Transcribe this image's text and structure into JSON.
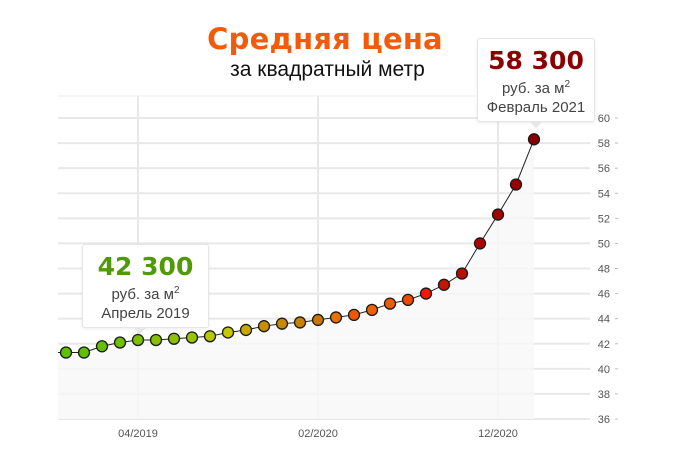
{
  "chart_data": {
    "type": "line",
    "title": "Средняя цена",
    "subtitle": "за квадратный метр",
    "xlabel": "",
    "ylabel": "",
    "ylim": [
      36,
      60
    ],
    "yticks": [
      36,
      38,
      40,
      42,
      44,
      46,
      48,
      50,
      52,
      54,
      56,
      58,
      60
    ],
    "xtick_labels": [
      {
        "index": 4,
        "label": "04/2019"
      },
      {
        "index": 14,
        "label": "02/2020"
      },
      {
        "index": 24,
        "label": "12/2020"
      }
    ],
    "x": [
      "12/2018",
      "01/2019",
      "02/2019",
      "03/2019",
      "04/2019",
      "05/2019",
      "06/2019",
      "07/2019",
      "08/2019",
      "09/2019",
      "10/2019",
      "11/2019",
      "12/2019",
      "01/2020",
      "02/2020",
      "03/2020",
      "04/2020",
      "05/2020",
      "06/2020",
      "07/2020",
      "08/2020",
      "09/2020",
      "10/2020",
      "11/2020",
      "12/2020",
      "01/2021",
      "02/2021"
    ],
    "values": [
      41.3,
      41.3,
      41.8,
      42.1,
      42.3,
      42.3,
      42.4,
      42.5,
      42.6,
      42.9,
      43.1,
      43.4,
      43.6,
      43.7,
      43.9,
      44.1,
      44.3,
      44.7,
      45.2,
      45.5,
      46.0,
      46.7,
      47.6,
      50.0,
      52.3,
      54.7,
      58.3
    ],
    "point_colors": [
      "#5fc000",
      "#5fc000",
      "#66c000",
      "#70c000",
      "#7cc000",
      "#86c000",
      "#8cc000",
      "#98c400",
      "#b8c800",
      "#c4c800",
      "#c8a800",
      "#c89000",
      "#c88800",
      "#c88000",
      "#c87800",
      "#e87000",
      "#f05800",
      "#f06000",
      "#f05a00",
      "#f04800",
      "#f01800",
      "#c01800",
      "#b81000",
      "#b00000",
      "#a00000",
      "#980000",
      "#880000"
    ],
    "grid": true,
    "colors": {
      "title": "#f25a0c",
      "min_value": "#4f9a06",
      "max_value": "#8b0000"
    }
  },
  "tooltips": {
    "min": {
      "value": "42 300",
      "unit": "руб. за м",
      "unit_sup": "2",
      "date": "Апрель 2019"
    },
    "max": {
      "value": "58 300",
      "unit": "руб. за м",
      "unit_sup": "2",
      "date": "Февраль 2021"
    }
  }
}
